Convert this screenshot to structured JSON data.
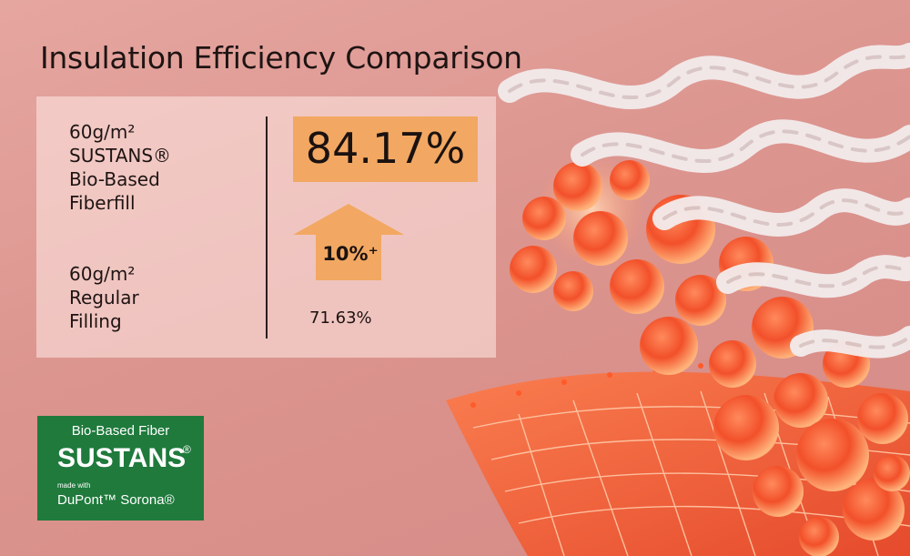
{
  "title": "Insulation Efficiency Comparison",
  "comparison": {
    "product_a": {
      "lines": [
        "60g/m²",
        "SUSTANS®",
        "Bio-Based",
        "Fiberfill"
      ],
      "value": "84.17%"
    },
    "product_b": {
      "lines": [
        "60g/m²",
        "Regular",
        "Filling"
      ],
      "value": "71.63%"
    },
    "improvement": "10%⁺"
  },
  "logo": {
    "top": "Bio-Based Fiber",
    "brand": "SUSTANS",
    "reg_mark": "®",
    "made_with": "made with",
    "partner": "DuPont™ Sorona®"
  },
  "colors": {
    "background": "#dc958f",
    "highlight": "#f2a862",
    "logo_green": "#1f7a3c",
    "bubble": "#f05a28"
  }
}
